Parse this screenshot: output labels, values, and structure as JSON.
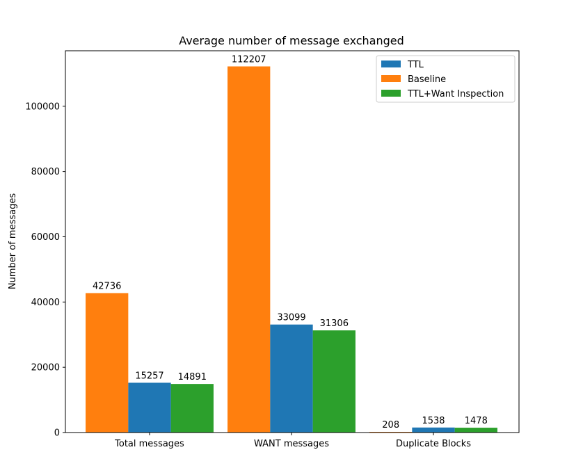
{
  "chart_data": {
    "type": "bar",
    "title": "Average number of message exchanged",
    "xlabel": "",
    "ylabel": "Number of messages",
    "categories": [
      "Total messages",
      "WANT messages",
      "Duplicate Blocks"
    ],
    "series": [
      {
        "name": "Baseline",
        "values": [
          42736,
          112207,
          208
        ],
        "color": "#ff7f0e"
      },
      {
        "name": "TTL",
        "values": [
          15257,
          33099,
          1538
        ],
        "color": "#1f77b4"
      },
      {
        "name": "TTL+Want Inspection",
        "values": [
          14891,
          31306,
          1478
        ],
        "color": "#2ca02c"
      }
    ],
    "ylim": [
      0,
      117000
    ],
    "yticks": [
      0,
      20000,
      40000,
      60000,
      80000,
      100000
    ],
    "ytick_labels": [
      "0",
      "20000",
      "40000",
      "60000",
      "80000",
      "100000"
    ],
    "legend": {
      "position": "top-right",
      "entries": [
        {
          "label": "TTL",
          "color": "#1f77b4"
        },
        {
          "label": "Baseline",
          "color": "#ff7f0e"
        },
        {
          "label": "TTL+Want Inspection",
          "color": "#2ca02c"
        }
      ]
    },
    "grid": false
  }
}
